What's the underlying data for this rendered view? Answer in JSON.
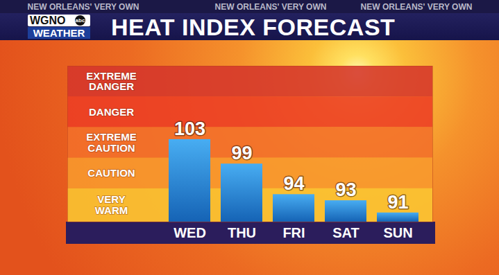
{
  "header": {
    "taglines": [
      "NEW ORLEANS' VERY OWN",
      "NEW ORLEANS' VERY OWN",
      "NEW ORLEANS' VERY OWN"
    ],
    "logo": {
      "station": "WGNO",
      "network": "abc",
      "label": "WEATHER"
    }
  },
  "chart_data": {
    "type": "bar",
    "title": "HEAT INDEX FORECAST",
    "categories": [
      "WED",
      "THU",
      "FRI",
      "SAT",
      "SUN"
    ],
    "values": [
      103,
      99,
      94,
      93,
      91
    ],
    "color": "#1b7fe8",
    "ylim": [
      89.5,
      115
    ],
    "yticks": [],
    "grid": false,
    "data_labels": true,
    "tick_labels": "x",
    "bands": [
      {
        "label": "VERY WARM",
        "from": 89.5,
        "to": 95,
        "color": "#fac632"
      },
      {
        "label": "CAUTION",
        "from": 95,
        "to": 100,
        "color": "#f89a2e"
      },
      {
        "label": "EXTREME CAUTION",
        "from": 100,
        "to": 105,
        "color": "#f2702a"
      },
      {
        "label": "DANGER",
        "from": 105,
        "to": 110,
        "color": "#ec3d24"
      },
      {
        "label": "EXTREME DANGER",
        "from": 110,
        "to": 115,
        "color": "#d5352b"
      }
    ]
  }
}
